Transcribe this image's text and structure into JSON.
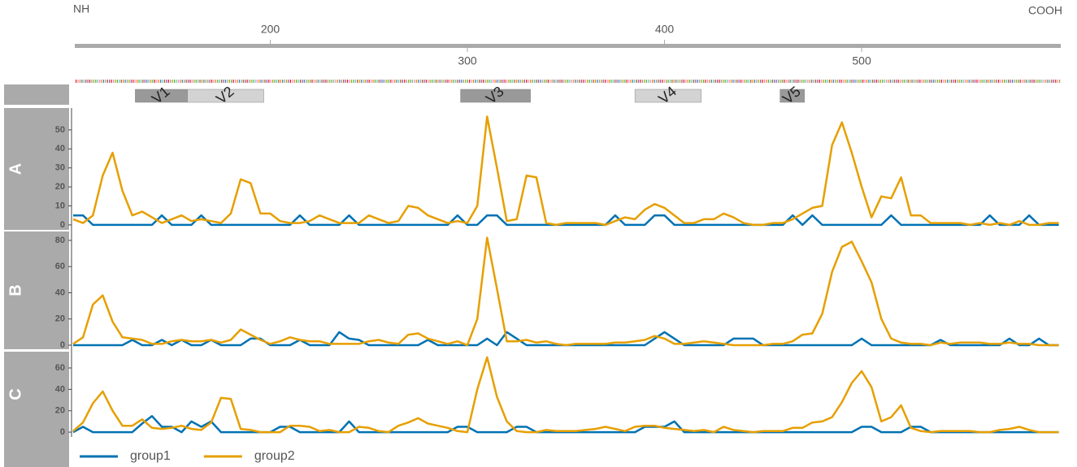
{
  "position_axis": {
    "xlim": [
      100,
      601
    ],
    "xticks": [
      200,
      300,
      400,
      500
    ],
    "left_label": "NH",
    "right_label": "COOH"
  },
  "regions": [
    {
      "label": "V1",
      "start": 131.5,
      "end": 158,
      "color": "#999999"
    },
    {
      "label": "V2",
      "start": 158,
      "end": 196.7,
      "color": "#d3d3d3"
    },
    {
      "label": "V3",
      "start": 296.5,
      "end": 332,
      "color": "#999999"
    },
    {
      "label": "V4",
      "start": 385,
      "end": 418.6,
      "color": "#d3d3d3"
    },
    {
      "label": "V5",
      "start": 458.6,
      "end": 471,
      "color": "#999999"
    }
  ],
  "chart_data": [
    {
      "type": "line",
      "panel": "A",
      "xlim": [
        100,
        601
      ],
      "ylim": [
        -2.6,
        61.5
      ],
      "yticks": [
        0,
        10,
        20,
        30,
        40,
        50
      ],
      "x": [
        100,
        105,
        110,
        115,
        120,
        125,
        130,
        135,
        140,
        145,
        150,
        155,
        160,
        165,
        170,
        175,
        180,
        185,
        190,
        195,
        200,
        205,
        210,
        215,
        220,
        225,
        230,
        235,
        240,
        245,
        250,
        255,
        260,
        265,
        270,
        275,
        280,
        285,
        290,
        295,
        300,
        305,
        310,
        315,
        320,
        325,
        330,
        335,
        340,
        345,
        350,
        355,
        360,
        365,
        370,
        375,
        380,
        385,
        390,
        395,
        400,
        405,
        410,
        415,
        420,
        425,
        430,
        435,
        440,
        445,
        450,
        455,
        460,
        465,
        470,
        475,
        480,
        485,
        490,
        495,
        500,
        505,
        510,
        515,
        520,
        525,
        530,
        535,
        540,
        545,
        550,
        555,
        560,
        565,
        570,
        575,
        580,
        585,
        590,
        595,
        600
      ],
      "series": [
        {
          "name": "group1",
          "color": "#0072B2",
          "values": [
            5,
            5,
            0,
            0,
            0,
            0,
            0,
            0,
            0,
            5,
            0,
            0,
            0,
            5,
            0,
            0,
            0,
            0,
            0,
            0,
            0,
            0,
            0,
            5,
            0,
            0,
            0,
            0,
            5,
            0,
            0,
            0,
            0,
            0,
            0,
            0,
            0,
            0,
            0,
            5,
            0,
            0,
            5,
            5,
            0,
            0,
            0,
            0,
            0,
            0,
            0,
            0,
            0,
            0,
            0,
            5,
            0,
            0,
            0,
            5,
            5,
            0,
            0,
            0,
            0,
            0,
            0,
            0,
            0,
            0,
            0,
            0,
            0,
            5,
            0,
            5,
            0,
            0,
            0,
            0,
            0,
            0,
            0,
            5,
            0,
            0,
            0,
            0,
            0,
            0,
            0,
            0,
            0,
            5,
            0,
            0,
            0,
            5,
            0,
            0,
            0
          ]
        },
        {
          "name": "group2",
          "color": "#E69F00",
          "values": [
            3,
            1,
            5,
            26,
            38,
            18,
            5,
            7,
            4,
            1,
            3,
            5,
            2,
            3,
            2,
            1,
            6,
            24,
            22,
            6,
            6,
            2,
            1,
            1,
            2,
            5,
            3,
            1,
            1,
            1,
            5,
            3,
            1,
            2,
            10,
            9,
            5,
            3,
            1,
            2,
            1,
            10,
            57,
            30,
            2,
            3,
            26,
            25,
            1,
            0,
            1,
            1,
            1,
            1,
            0,
            2,
            4,
            3,
            8,
            11,
            9,
            5,
            1,
            1,
            3,
            3,
            6,
            4,
            1,
            0,
            0,
            1,
            1,
            3,
            6,
            9,
            10,
            42,
            54,
            38,
            20,
            4,
            15,
            14,
            25,
            5,
            5,
            1,
            1,
            1,
            1,
            0,
            1,
            0,
            1,
            0,
            2,
            0,
            0,
            1,
            1
          ]
        }
      ]
    },
    {
      "type": "line",
      "panel": "B",
      "xlim": [
        100,
        601
      ],
      "ylim": [
        -3.1,
        86.8
      ],
      "yticks": [
        0,
        20,
        40,
        60,
        80
      ],
      "x": [
        100,
        105,
        110,
        115,
        120,
        125,
        130,
        135,
        140,
        145,
        150,
        155,
        160,
        165,
        170,
        175,
        180,
        185,
        190,
        195,
        200,
        205,
        210,
        215,
        220,
        225,
        230,
        235,
        240,
        245,
        250,
        255,
        260,
        265,
        270,
        275,
        280,
        285,
        290,
        295,
        300,
        305,
        310,
        315,
        320,
        325,
        330,
        335,
        340,
        345,
        350,
        355,
        360,
        365,
        370,
        375,
        380,
        385,
        390,
        395,
        400,
        405,
        410,
        415,
        420,
        425,
        430,
        435,
        440,
        445,
        450,
        455,
        460,
        465,
        470,
        475,
        480,
        485,
        490,
        495,
        500,
        505,
        510,
        515,
        520,
        525,
        530,
        535,
        540,
        545,
        550,
        555,
        560,
        565,
        570,
        575,
        580,
        585,
        590,
        595,
        600
      ],
      "series": [
        {
          "name": "group1",
          "color": "#0072B2",
          "values": [
            0,
            0,
            0,
            0,
            0,
            0,
            4,
            0,
            0,
            4,
            0,
            4,
            0,
            0,
            4,
            0,
            0,
            0,
            5,
            5,
            0,
            0,
            0,
            4,
            0,
            0,
            0,
            10,
            5,
            4,
            0,
            0,
            0,
            0,
            0,
            0,
            4,
            0,
            0,
            0,
            0,
            0,
            5,
            0,
            10,
            5,
            0,
            0,
            0,
            0,
            0,
            0,
            0,
            0,
            0,
            0,
            0,
            0,
            0,
            5,
            10,
            5,
            0,
            0,
            0,
            0,
            0,
            5,
            5,
            5,
            0,
            0,
            0,
            0,
            0,
            0,
            0,
            0,
            0,
            0,
            5,
            0,
            0,
            0,
            0,
            0,
            0,
            0,
            4,
            0,
            0,
            0,
            0,
            0,
            0,
            5,
            0,
            0,
            5,
            0,
            0
          ]
        },
        {
          "name": "group2",
          "color": "#E69F00",
          "values": [
            1,
            6,
            31,
            38,
            18,
            6,
            5,
            4,
            1,
            1,
            3,
            4,
            3,
            3,
            4,
            2,
            4,
            12,
            8,
            4,
            1,
            3,
            6,
            4,
            3,
            3,
            1,
            1,
            1,
            1,
            3,
            4,
            2,
            1,
            8,
            9,
            5,
            3,
            1,
            3,
            0,
            20,
            82,
            43,
            3,
            3,
            4,
            2,
            3,
            1,
            0,
            1,
            1,
            1,
            1,
            2,
            2,
            3,
            4,
            7,
            5,
            1,
            1,
            2,
            3,
            2,
            1,
            0,
            0,
            0,
            0,
            1,
            1,
            3,
            8,
            9,
            24,
            56,
            75,
            79,
            64,
            48,
            20,
            5,
            2,
            1,
            1,
            0,
            2,
            1,
            2,
            2,
            2,
            1,
            1,
            2,
            1,
            1,
            0,
            0,
            0
          ]
        }
      ]
    },
    {
      "type": "line",
      "panel": "C",
      "xlim": [
        100,
        601
      ],
      "ylim": [
        -4.5,
        75.2
      ],
      "yticks": [
        0,
        20,
        40,
        60
      ],
      "x": [
        100,
        105,
        110,
        115,
        120,
        125,
        130,
        135,
        140,
        145,
        150,
        155,
        160,
        165,
        170,
        175,
        180,
        185,
        190,
        195,
        200,
        205,
        210,
        215,
        220,
        225,
        230,
        235,
        240,
        245,
        250,
        255,
        260,
        265,
        270,
        275,
        280,
        285,
        290,
        295,
        300,
        305,
        310,
        315,
        320,
        325,
        330,
        335,
        340,
        345,
        350,
        355,
        360,
        365,
        370,
        375,
        380,
        385,
        390,
        395,
        400,
        405,
        410,
        415,
        420,
        425,
        430,
        435,
        440,
        445,
        450,
        455,
        460,
        465,
        470,
        475,
        480,
        485,
        490,
        495,
        500,
        505,
        510,
        515,
        520,
        525,
        530,
        535,
        540,
        545,
        550,
        555,
        560,
        565,
        570,
        575,
        580,
        585,
        590,
        595,
        600
      ],
      "series": [
        {
          "name": "group1",
          "color": "#0072B2",
          "values": [
            0,
            5,
            0,
            0,
            0,
            0,
            0,
            8,
            15,
            5,
            5,
            0,
            10,
            5,
            10,
            0,
            0,
            0,
            0,
            0,
            0,
            5,
            5,
            0,
            0,
            0,
            0,
            0,
            10,
            0,
            0,
            0,
            0,
            0,
            0,
            0,
            0,
            0,
            0,
            5,
            5,
            0,
            0,
            0,
            0,
            5,
            5,
            0,
            0,
            0,
            0,
            0,
            0,
            0,
            0,
            0,
            0,
            0,
            5,
            5,
            5,
            10,
            0,
            0,
            0,
            0,
            0,
            0,
            0,
            0,
            0,
            0,
            0,
            0,
            0,
            0,
            0,
            0,
            0,
            0,
            5,
            5,
            0,
            0,
            0,
            5,
            5,
            0,
            0,
            0,
            0,
            0,
            0,
            0,
            0,
            0,
            0,
            0,
            0,
            0,
            0
          ]
        },
        {
          "name": "group2",
          "color": "#E69F00",
          "values": [
            1,
            9,
            27,
            38,
            20,
            6,
            6,
            12,
            4,
            3,
            4,
            6,
            3,
            2,
            9,
            32,
            31,
            3,
            2,
            0,
            0,
            0,
            6,
            6,
            5,
            1,
            2,
            0,
            0,
            5,
            4,
            1,
            0,
            6,
            9,
            13,
            8,
            6,
            4,
            1,
            0,
            40,
            70,
            33,
            10,
            1,
            0,
            0,
            2,
            1,
            1,
            1,
            2,
            3,
            5,
            3,
            1,
            5,
            6,
            6,
            4,
            3,
            2,
            1,
            2,
            0,
            5,
            2,
            1,
            0,
            1,
            1,
            1,
            4,
            4,
            9,
            10,
            14,
            28,
            46,
            57,
            42,
            10,
            14,
            25,
            4,
            1,
            0,
            1,
            1,
            1,
            1,
            0,
            0,
            2,
            3,
            5,
            2,
            0,
            0,
            0
          ]
        }
      ]
    }
  ]
}
